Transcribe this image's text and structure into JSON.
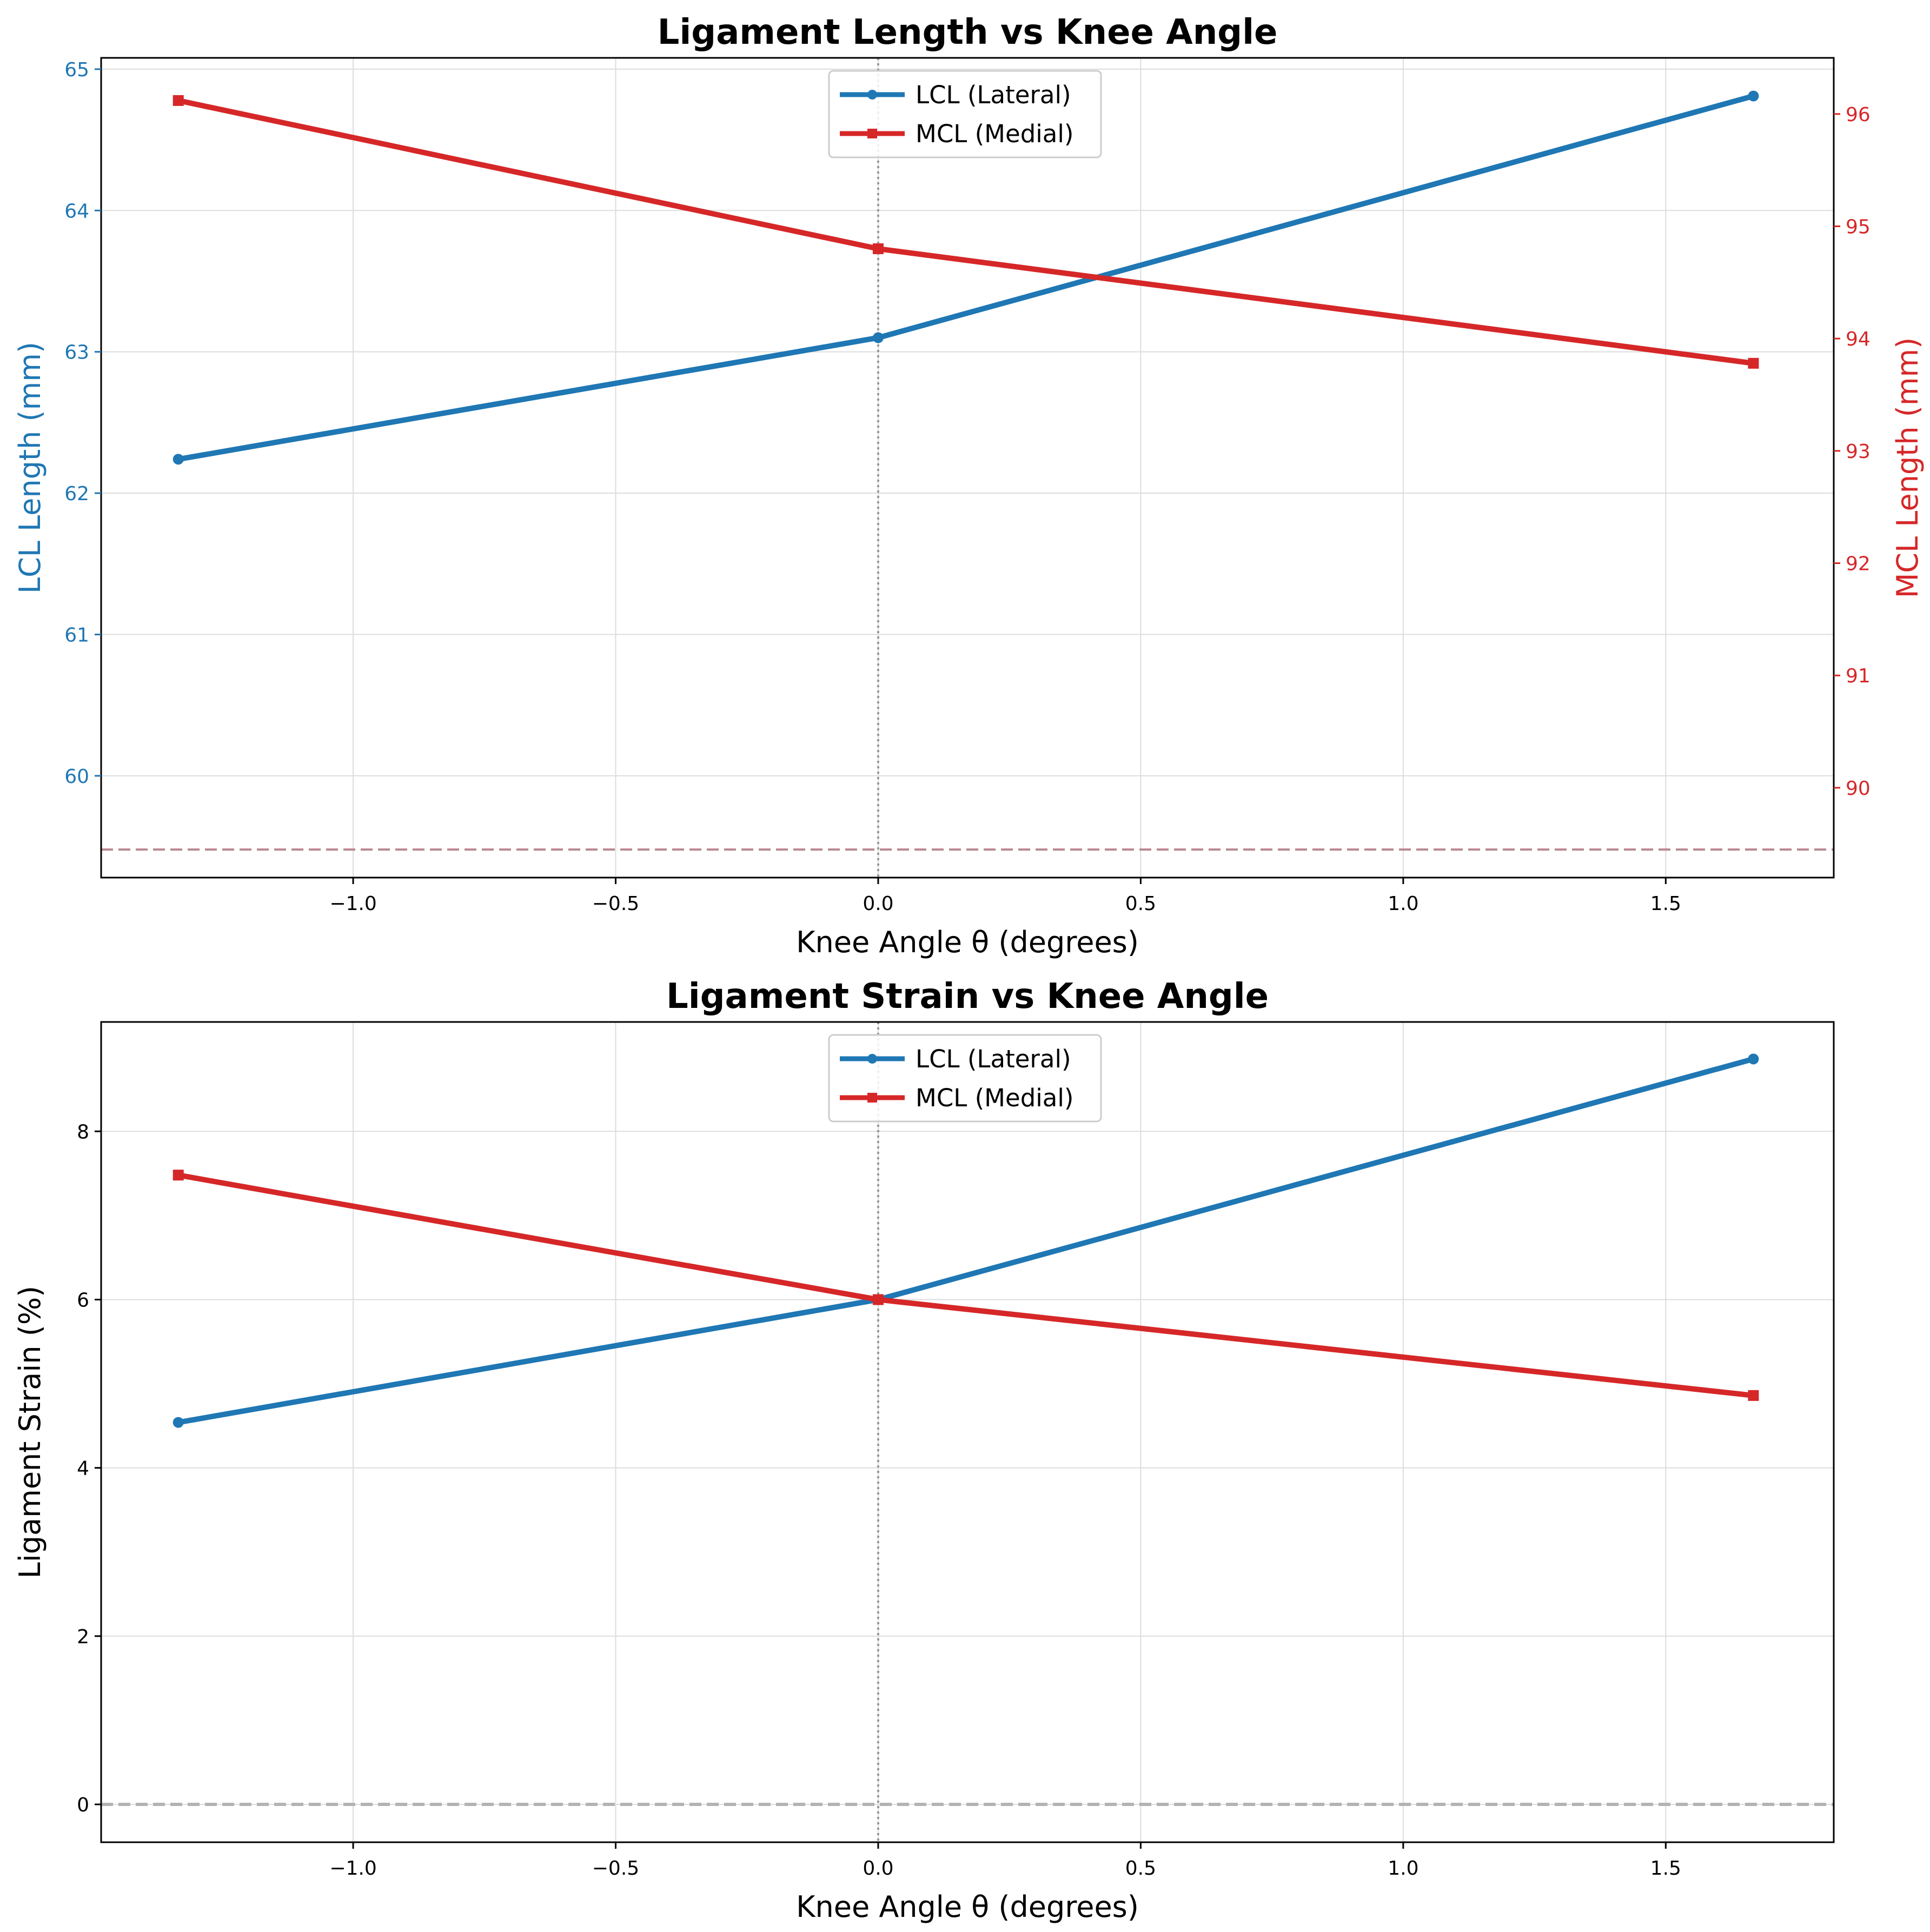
{
  "figure": {
    "background": "#ffffff"
  },
  "colors": {
    "lcl": "#1f77b4",
    "mcl": "#d62728",
    "grid": "#dddddd",
    "vline": "#999999",
    "hline_top": "#b9868f",
    "hline_bottom": "#b3b3b3"
  },
  "chart_data": [
    {
      "type": "line",
      "title": "Ligament Length vs Knee Angle",
      "xlabel": "Knee Angle θ (degrees)",
      "ylabel": "LCL Length (mm)",
      "ylabel_right": "MCL Length (mm)",
      "xlim": [
        -1.48,
        1.82
      ],
      "ylim": [
        59.28,
        65.08
      ],
      "ylim_right": [
        89.2,
        96.5
      ],
      "xticks": [
        -1.0,
        -0.5,
        0.0,
        0.5,
        1.0,
        1.5
      ],
      "xtick_labels": [
        "−1.0",
        "−0.5",
        "0.0",
        "0.5",
        "1.0",
        "1.5"
      ],
      "yticks": [
        60,
        61,
        62,
        63,
        64,
        65
      ],
      "yticks_right": [
        90,
        91,
        92,
        93,
        94,
        95,
        96
      ],
      "grid": true,
      "legend": {
        "placement": "top-center",
        "entries": [
          "LCL (Lateral)",
          "MCL (Medial)"
        ]
      },
      "reference_lines": [
        {
          "orientation": "vertical",
          "axis": "x",
          "value": 0.0,
          "style": "dotted"
        },
        {
          "orientation": "horizontal",
          "axis": "y_right",
          "value": 89.45,
          "style": "dashed"
        }
      ],
      "series": [
        {
          "name": "LCL (Lateral)",
          "axis": "left",
          "marker": "circle",
          "x": [
            -1.333,
            0.0,
            1.667
          ],
          "y": [
            62.24,
            63.1,
            64.81
          ]
        },
        {
          "name": "MCL (Medial)",
          "axis": "right",
          "marker": "square",
          "x": [
            -1.333,
            0.0,
            1.667
          ],
          "y": [
            96.12,
            94.8,
            93.78
          ]
        }
      ]
    },
    {
      "type": "line",
      "title": "Ligament Strain vs Knee Angle",
      "xlabel": "Knee Angle θ (degrees)",
      "ylabel": "Ligament Strain (%)",
      "xlim": [
        -1.48,
        1.82
      ],
      "ylim": [
        -0.45,
        9.3
      ],
      "xticks": [
        -1.0,
        -0.5,
        0.0,
        0.5,
        1.0,
        1.5
      ],
      "xtick_labels": [
        "−1.0",
        "−0.5",
        "0.0",
        "0.5",
        "1.0",
        "1.5"
      ],
      "yticks": [
        0,
        2,
        4,
        6,
        8
      ],
      "grid": true,
      "legend": {
        "placement": "top-center",
        "entries": [
          "LCL (Lateral)",
          "MCL (Medial)"
        ]
      },
      "reference_lines": [
        {
          "orientation": "vertical",
          "axis": "x",
          "value": 0.0,
          "style": "dotted"
        },
        {
          "orientation": "horizontal",
          "axis": "y",
          "value": 0.0,
          "style": "dashed"
        }
      ],
      "series": [
        {
          "name": "LCL (Lateral)",
          "axis": "left",
          "marker": "circle",
          "x": [
            -1.333,
            0.0,
            1.667
          ],
          "y": [
            4.54,
            6.0,
            8.86
          ]
        },
        {
          "name": "MCL (Medial)",
          "axis": "left",
          "marker": "square",
          "x": [
            -1.333,
            0.0,
            1.667
          ],
          "y": [
            7.48,
            6.0,
            4.86
          ]
        }
      ]
    }
  ]
}
